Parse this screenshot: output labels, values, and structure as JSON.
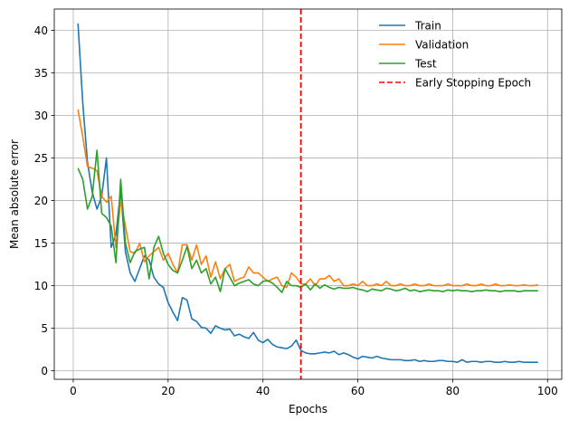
{
  "chart_data": {
    "type": "line",
    "title": "",
    "xlabel": "Epochs",
    "ylabel": "Mean absolute error",
    "xlim": [
      -4.0,
      103.0
    ],
    "ylim": [
      -1.0,
      42.5
    ],
    "xticks": [
      0,
      20,
      40,
      60,
      80,
      100
    ],
    "yticks": [
      0,
      5,
      10,
      15,
      20,
      25,
      30,
      35,
      40
    ],
    "grid": true,
    "legend_position": "top-right",
    "series": [
      {
        "name": "Train",
        "color": "#1f77b4",
        "x": [
          1,
          2,
          3,
          4,
          5,
          6,
          7,
          8,
          9,
          10,
          11,
          12,
          13,
          14,
          15,
          16,
          17,
          18,
          19,
          20,
          21,
          22,
          23,
          24,
          25,
          26,
          27,
          28,
          29,
          30,
          31,
          32,
          33,
          34,
          35,
          36,
          37,
          38,
          39,
          40,
          41,
          42,
          43,
          44,
          45,
          46,
          47,
          48,
          49,
          50,
          51,
          52,
          53,
          54,
          55,
          56,
          57,
          58,
          59,
          60,
          61,
          62,
          63,
          64,
          65,
          66,
          67,
          68,
          69,
          70,
          71,
          72,
          73,
          74,
          75,
          76,
          77,
          78,
          79,
          80,
          81,
          82,
          83,
          84,
          85,
          86,
          87,
          88,
          89,
          90,
          91,
          92,
          93,
          94,
          95,
          96,
          97,
          98
        ],
        "y": [
          40.8,
          31.5,
          24.5,
          21.0,
          19.0,
          20.5,
          25.0,
          14.5,
          16.0,
          21.2,
          14.0,
          11.5,
          10.5,
          12.0,
          13.5,
          13.0,
          11.0,
          10.2,
          9.8,
          8.0,
          6.9,
          5.9,
          8.6,
          8.3,
          6.1,
          5.8,
          5.1,
          5.0,
          4.4,
          5.3,
          5.0,
          4.8,
          4.9,
          4.1,
          4.3,
          4.0,
          3.8,
          4.5,
          3.6,
          3.3,
          3.7,
          3.1,
          2.8,
          2.7,
          2.6,
          2.9,
          3.6,
          2.4,
          2.1,
          2.0,
          2.0,
          2.1,
          2.2,
          2.1,
          2.3,
          1.9,
          2.1,
          1.9,
          1.6,
          1.4,
          1.7,
          1.6,
          1.5,
          1.7,
          1.5,
          1.4,
          1.3,
          1.3,
          1.3,
          1.2,
          1.2,
          1.3,
          1.1,
          1.2,
          1.1,
          1.1,
          1.2,
          1.2,
          1.1,
          1.1,
          1.0,
          1.3,
          1.0,
          1.1,
          1.1,
          1.0,
          1.1,
          1.1,
          1.0,
          1.0,
          1.1,
          1.0,
          1.0,
          1.1,
          1.0,
          1.0,
          1.0,
          1.0
        ]
      },
      {
        "name": "Validation",
        "color": "#ff7f0e",
        "x": [
          1,
          2,
          3,
          4,
          5,
          6,
          7,
          8,
          9,
          10,
          11,
          12,
          13,
          14,
          15,
          16,
          17,
          18,
          19,
          20,
          21,
          22,
          23,
          24,
          25,
          26,
          27,
          28,
          29,
          30,
          31,
          32,
          33,
          34,
          35,
          36,
          37,
          38,
          39,
          40,
          41,
          42,
          43,
          44,
          45,
          46,
          47,
          48,
          49,
          50,
          51,
          52,
          53,
          54,
          55,
          56,
          57,
          58,
          59,
          60,
          61,
          62,
          63,
          64,
          65,
          66,
          67,
          68,
          69,
          70,
          71,
          72,
          73,
          74,
          75,
          76,
          77,
          78,
          79,
          80,
          81,
          82,
          83,
          84,
          85,
          86,
          87,
          88,
          89,
          90,
          91,
          92,
          93,
          94,
          95,
          96,
          97,
          98
        ],
        "y": [
          30.7,
          27.5,
          24.0,
          23.8,
          23.5,
          20.5,
          19.8,
          20.5,
          14.5,
          20.0,
          17.0,
          14.0,
          13.8,
          15.0,
          12.8,
          13.5,
          14.0,
          14.5,
          13.0,
          13.8,
          12.5,
          11.5,
          14.8,
          14.8,
          13.0,
          14.8,
          12.5,
          13.5,
          11.0,
          12.8,
          10.8,
          12.0,
          12.5,
          10.5,
          10.8,
          11.0,
          12.2,
          11.5,
          11.5,
          11.0,
          10.5,
          10.8,
          11.0,
          10.0,
          9.8,
          11.5,
          11.0,
          10.2,
          10.2,
          10.8,
          10.0,
          10.8,
          10.8,
          11.2,
          10.5,
          10.8,
          10.0,
          10.0,
          10.2,
          10.0,
          10.5,
          10.0,
          10.0,
          10.2,
          10.0,
          10.5,
          10.0,
          10.0,
          10.2,
          10.0,
          10.0,
          10.2,
          10.0,
          10.0,
          10.2,
          10.0,
          10.0,
          10.0,
          10.2,
          10.0,
          10.0,
          10.0,
          10.2,
          10.0,
          10.0,
          10.2,
          10.0,
          10.0,
          10.2,
          10.0,
          10.0,
          10.1,
          10.0,
          10.0,
          10.1,
          10.0,
          10.0,
          10.1
        ]
      },
      {
        "name": "Test",
        "color": "#2ca02c",
        "x": [
          1,
          2,
          3,
          4,
          5,
          6,
          7,
          8,
          9,
          10,
          11,
          12,
          13,
          14,
          15,
          16,
          17,
          18,
          19,
          20,
          21,
          22,
          23,
          24,
          25,
          26,
          27,
          28,
          29,
          30,
          31,
          32,
          33,
          34,
          35,
          36,
          37,
          38,
          39,
          40,
          41,
          42,
          43,
          44,
          45,
          46,
          47,
          48,
          49,
          50,
          51,
          52,
          53,
          54,
          55,
          56,
          57,
          58,
          59,
          60,
          61,
          62,
          63,
          64,
          65,
          66,
          67,
          68,
          69,
          70,
          71,
          72,
          73,
          74,
          75,
          76,
          77,
          78,
          79,
          80,
          81,
          82,
          83,
          84,
          85,
          86,
          87,
          88,
          89,
          90,
          91,
          92,
          93,
          94,
          95,
          96,
          97,
          98
        ],
        "y": [
          23.8,
          22.5,
          19.0,
          20.5,
          25.9,
          18.5,
          18.0,
          17.0,
          12.7,
          22.5,
          15.0,
          12.7,
          14.0,
          14.3,
          14.5,
          10.8,
          14.5,
          15.8,
          13.8,
          12.5,
          11.8,
          11.5,
          13.0,
          14.6,
          12.0,
          13.0,
          11.5,
          12.0,
          10.2,
          11.0,
          9.3,
          12.0,
          11.0,
          10.0,
          10.3,
          10.5,
          10.7,
          10.2,
          10.0,
          10.5,
          10.6,
          10.3,
          9.8,
          9.2,
          10.5,
          10.0,
          10.0,
          9.8,
          10.2,
          9.5,
          10.2,
          9.7,
          10.1,
          9.8,
          9.6,
          9.8,
          9.7,
          9.7,
          9.8,
          9.6,
          9.5,
          9.3,
          9.6,
          9.5,
          9.4,
          9.7,
          9.6,
          9.4,
          9.5,
          9.7,
          9.4,
          9.5,
          9.3,
          9.4,
          9.5,
          9.4,
          9.4,
          9.3,
          9.5,
          9.4,
          9.5,
          9.4,
          9.4,
          9.3,
          9.4,
          9.4,
          9.5,
          9.4,
          9.4,
          9.3,
          9.4,
          9.4,
          9.4,
          9.3,
          9.4,
          9.4,
          9.4,
          9.4
        ]
      },
      {
        "name": "Early Stopping Epoch",
        "color": "#ff0000",
        "style": "dashed",
        "vline_x": 48
      }
    ]
  }
}
